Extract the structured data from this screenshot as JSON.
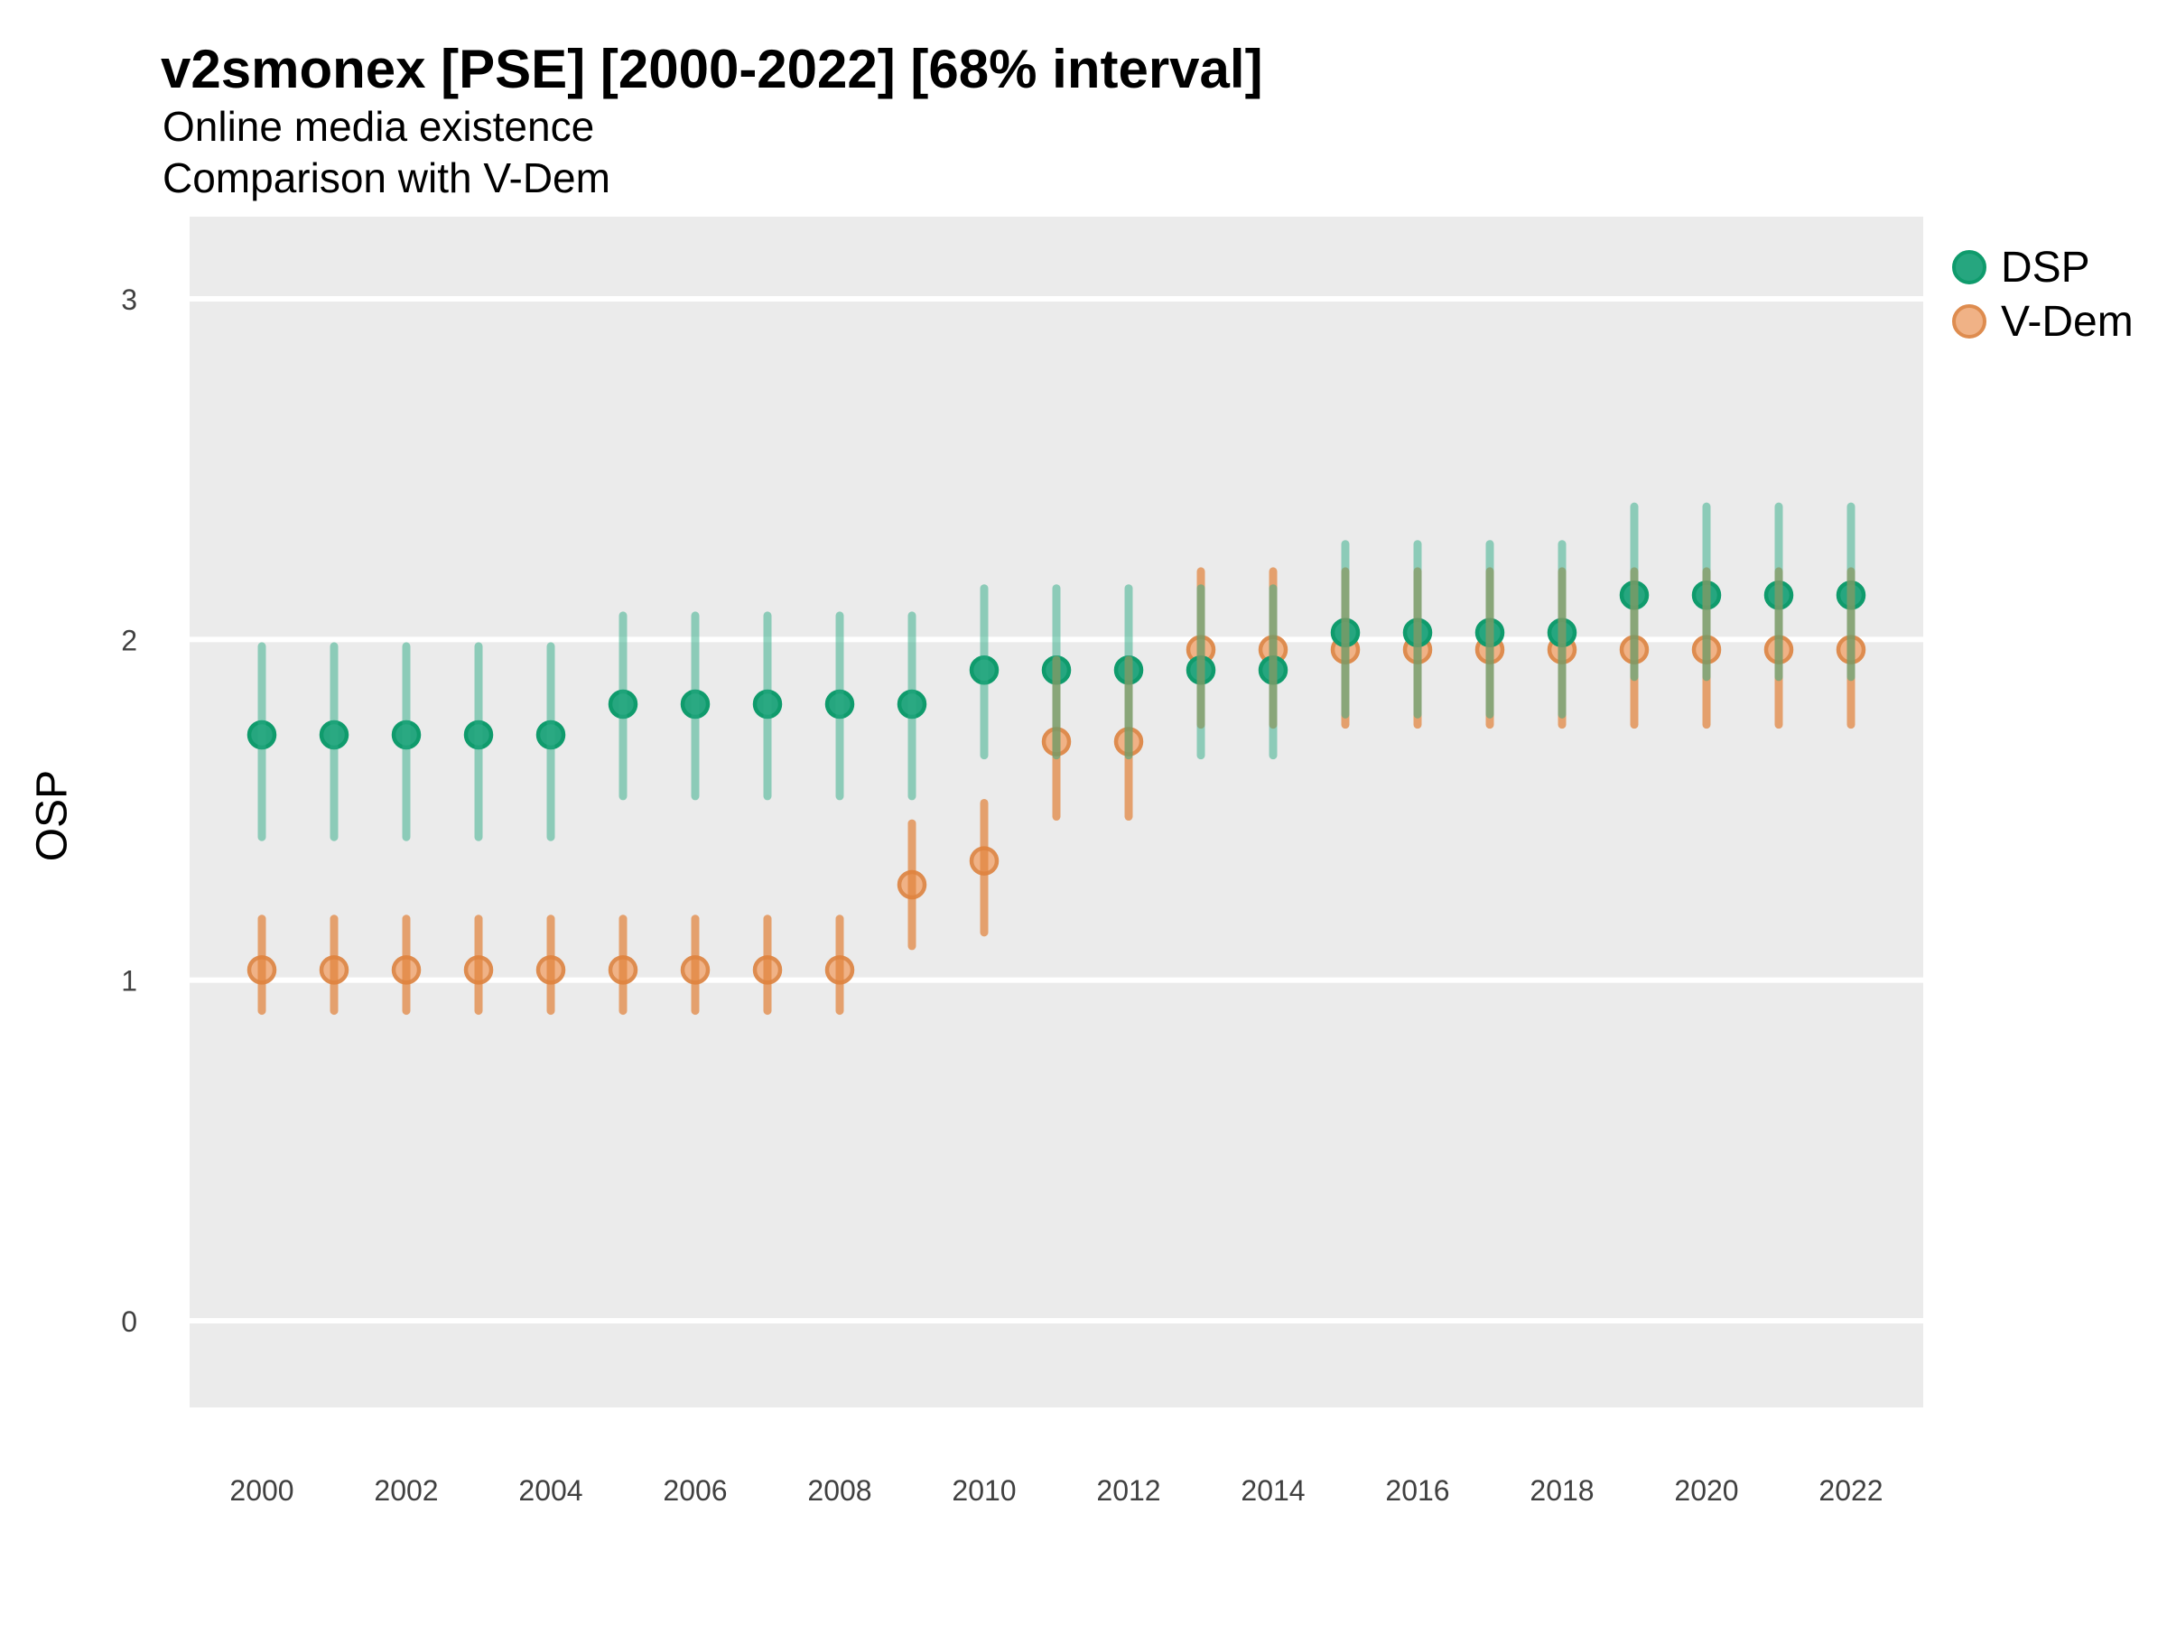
{
  "chart_data": {
    "type": "scatter",
    "variant": "pointrange",
    "title": "v2smonex [PSE] [2000-2022] [68% interval]",
    "subtitle_lines": [
      "Online media existence",
      "Comparison with V-Dem"
    ],
    "ylabel": "OSP",
    "xlabel": "",
    "interval": "68%",
    "ylim": [
      0,
      3
    ],
    "yticks": [
      0,
      1,
      2,
      3
    ],
    "xticks": [
      2000,
      2002,
      2004,
      2006,
      2008,
      2010,
      2012,
      2014,
      2016,
      2018,
      2020,
      2022
    ],
    "grid": "horizontal-major-only",
    "legend_position": "right-top",
    "panel_background": "#EBEBEB",
    "gridline_color": "#FFFFFF",
    "x": [
      2000,
      2001,
      2002,
      2003,
      2004,
      2005,
      2006,
      2007,
      2008,
      2009,
      2010,
      2011,
      2012,
      2013,
      2014,
      2015,
      2016,
      2017,
      2018,
      2019,
      2020,
      2021,
      2022
    ],
    "series": [
      {
        "name": "DSP",
        "point_fill": "#26A67F",
        "point_stroke": "#0F9B6C",
        "bar_color": "rgba(46,172,133,0.5)",
        "values": [
          1.72,
          1.72,
          1.72,
          1.72,
          1.72,
          1.81,
          1.81,
          1.81,
          1.81,
          1.81,
          1.91,
          1.91,
          1.91,
          1.91,
          1.91,
          2.02,
          2.02,
          2.02,
          2.02,
          2.13,
          2.13,
          2.13,
          2.13
        ],
        "lo": [
          1.42,
          1.42,
          1.42,
          1.42,
          1.42,
          1.54,
          1.54,
          1.54,
          1.54,
          1.54,
          1.66,
          1.66,
          1.66,
          1.66,
          1.66,
          1.78,
          1.78,
          1.78,
          1.78,
          1.89,
          1.89,
          1.89,
          1.89
        ],
        "hi": [
          1.98,
          1.98,
          1.98,
          1.98,
          1.98,
          2.07,
          2.07,
          2.07,
          2.07,
          2.07,
          2.15,
          2.15,
          2.15,
          2.15,
          2.15,
          2.28,
          2.28,
          2.28,
          2.28,
          2.39,
          2.39,
          2.39,
          2.39
        ]
      },
      {
        "name": "V-Dem",
        "point_fill": "#F0B286",
        "point_stroke": "#DE8C4F",
        "bar_color": "rgba(224,130,60,0.72)",
        "values": [
          1.03,
          1.03,
          1.03,
          1.03,
          1.03,
          1.03,
          1.03,
          1.03,
          1.03,
          1.28,
          1.35,
          1.7,
          1.7,
          1.97,
          1.97,
          1.97,
          1.97,
          1.97,
          1.97,
          1.97,
          1.97,
          1.97,
          1.97
        ],
        "lo": [
          0.91,
          0.91,
          0.91,
          0.91,
          0.91,
          0.91,
          0.91,
          0.91,
          0.91,
          1.1,
          1.14,
          1.48,
          1.48,
          1.75,
          1.75,
          1.75,
          1.75,
          1.75,
          1.75,
          1.75,
          1.75,
          1.75,
          1.75
        ],
        "hi": [
          1.18,
          1.18,
          1.18,
          1.18,
          1.18,
          1.18,
          1.18,
          1.18,
          1.18,
          1.46,
          1.52,
          1.94,
          1.94,
          2.2,
          2.2,
          2.2,
          2.2,
          2.2,
          2.2,
          2.2,
          2.2,
          2.2,
          2.2
        ]
      }
    ],
    "tick_label_color": "#404040"
  }
}
